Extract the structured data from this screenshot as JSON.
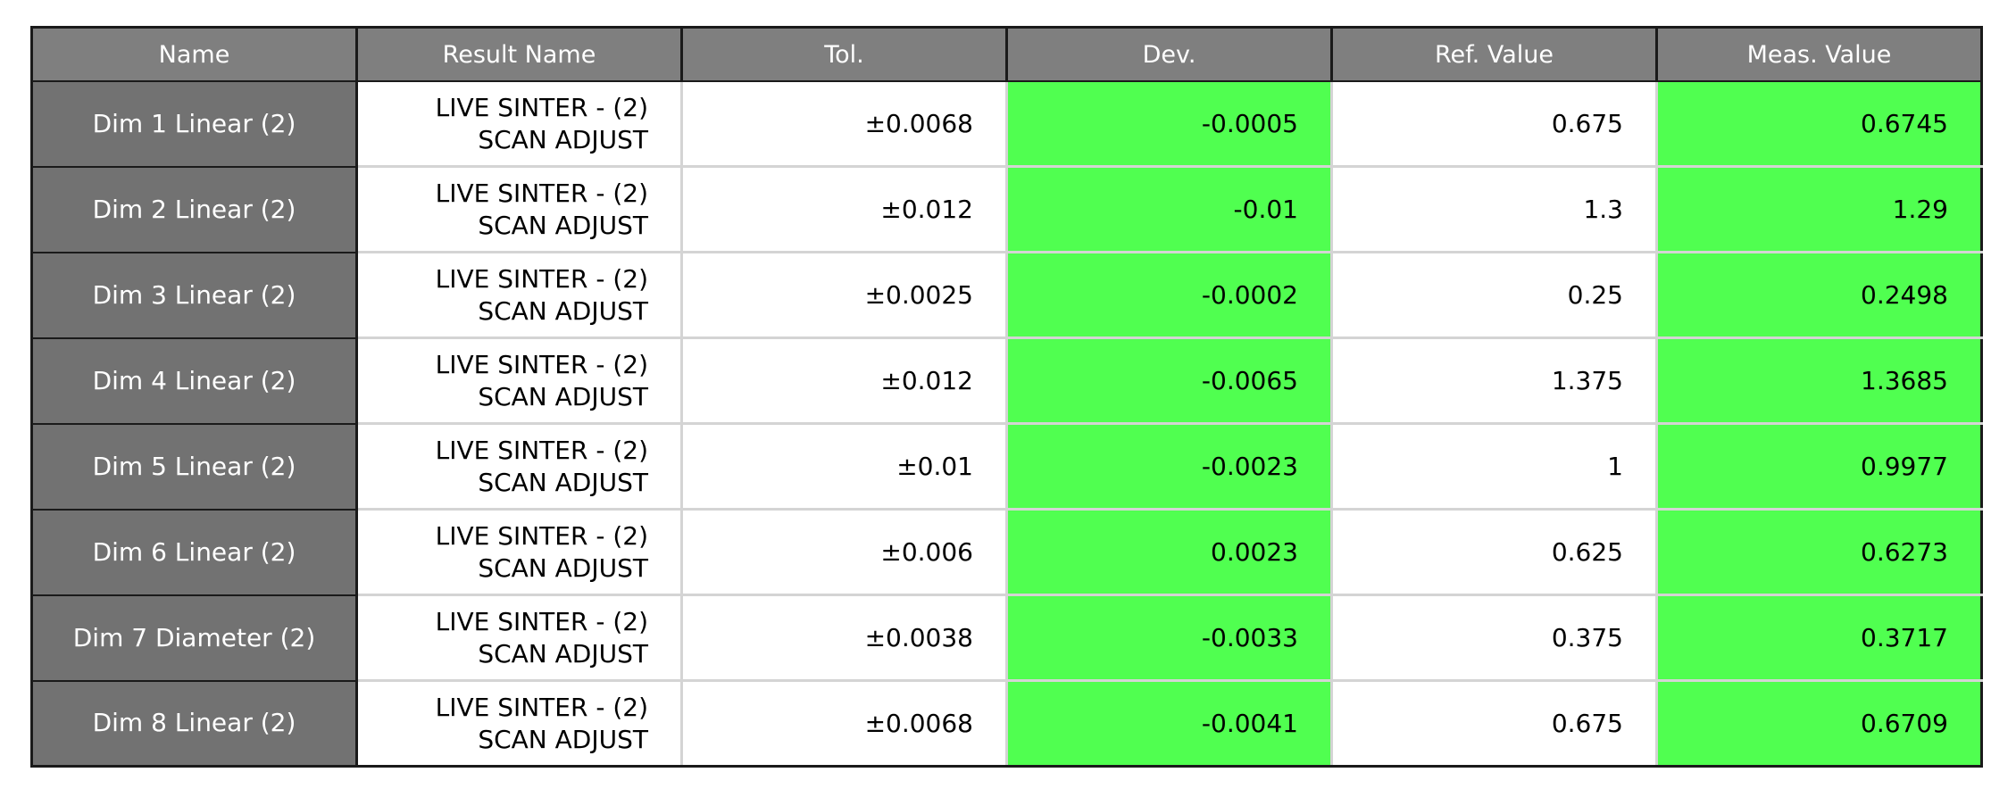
{
  "table": {
    "headers": [
      "Name",
      "Result Name",
      "Tol.",
      "Dev.",
      "Ref. Value",
      "Meas. Value"
    ],
    "status_colors": {
      "pass": "#50ff50",
      "name_cell": "#727272",
      "header": "#7f7f7f"
    },
    "rows": [
      {
        "name": "Dim 1 Linear (2)",
        "result_line1": "LIVE SINTER - (2)",
        "result_line2": "SCAN ADJUST",
        "tol": "±0.0068",
        "dev": "-0.0005",
        "ref": "0.675",
        "meas": "0.6745"
      },
      {
        "name": "Dim 2 Linear (2)",
        "result_line1": "LIVE SINTER - (2)",
        "result_line2": "SCAN ADJUST",
        "tol": "±0.012",
        "dev": "-0.01",
        "ref": "1.3",
        "meas": "1.29"
      },
      {
        "name": "Dim 3 Linear (2)",
        "result_line1": "LIVE SINTER - (2)",
        "result_line2": "SCAN ADJUST",
        "tol": "±0.0025",
        "dev": "-0.0002",
        "ref": "0.25",
        "meas": "0.2498"
      },
      {
        "name": "Dim 4 Linear (2)",
        "result_line1": "LIVE SINTER - (2)",
        "result_line2": "SCAN ADJUST",
        "tol": "±0.012",
        "dev": "-0.0065",
        "ref": "1.375",
        "meas": "1.3685"
      },
      {
        "name": "Dim 5 Linear (2)",
        "result_line1": "LIVE SINTER - (2)",
        "result_line2": "SCAN ADJUST",
        "tol": "±0.01",
        "dev": "-0.0023",
        "ref": "1",
        "meas": "0.9977"
      },
      {
        "name": "Dim 6 Linear (2)",
        "result_line1": "LIVE SINTER - (2)",
        "result_line2": "SCAN ADJUST",
        "tol": "±0.006",
        "dev": "0.0023",
        "ref": "0.625",
        "meas": "0.6273"
      },
      {
        "name": "Dim 7 Diameter (2)",
        "result_line1": "LIVE SINTER - (2)",
        "result_line2": "SCAN ADJUST",
        "tol": "±0.0038",
        "dev": "-0.0033",
        "ref": "0.375",
        "meas": "0.3717"
      },
      {
        "name": "Dim 8 Linear (2)",
        "result_line1": "LIVE SINTER - (2)",
        "result_line2": "SCAN ADJUST",
        "tol": "±0.0068",
        "dev": "-0.0041",
        "ref": "0.675",
        "meas": "0.6709"
      }
    ]
  }
}
